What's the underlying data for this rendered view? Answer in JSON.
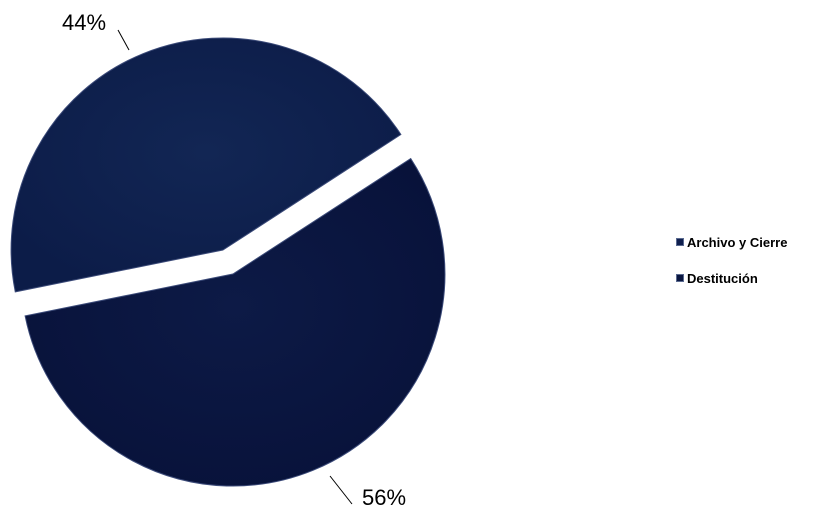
{
  "chart_data": {
    "type": "pie",
    "title": "",
    "slices": [
      {
        "label": "Archivo y Cierre",
        "value": 44,
        "display": "44%",
        "color": "#0f1f4e"
      },
      {
        "label": "Destitución",
        "value": 56,
        "display": "56%",
        "color": "#0a1640"
      }
    ],
    "exploded": true,
    "legend_position": "right"
  }
}
